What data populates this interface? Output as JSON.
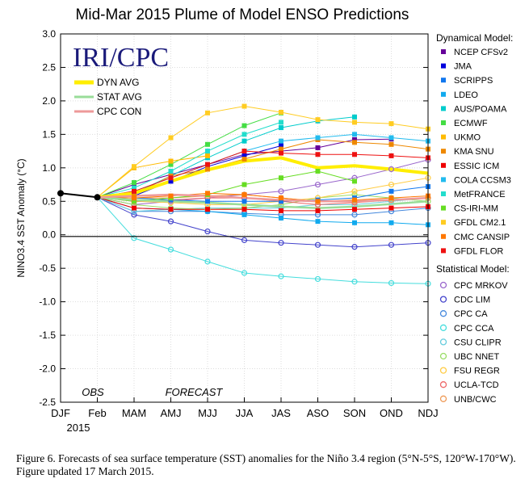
{
  "chart_data": {
    "type": "line",
    "title": "Mid-Mar 2015 Plume of Model ENSO Predictions",
    "xlabel": "",
    "ylabel": "NINO3.4 SST Anomaly (°C)",
    "ylim": [
      -2.5,
      3.0
    ],
    "yticks": [
      "3.0",
      "2.5",
      "2.0",
      "1.5",
      "1.0",
      "0.5",
      "0.0",
      "-0.5",
      "-1.0",
      "-1.5",
      "-2.0",
      "-2.5"
    ],
    "categories": [
      "DJF",
      "Feb",
      "MAM",
      "AMJ",
      "MJJ",
      "JJA",
      "JAS",
      "ASO",
      "SON",
      "OND",
      "NDJ"
    ],
    "year_label": "2015",
    "obs_label": "OBS",
    "forecast_label": "FORECAST",
    "logo_text": "IRI/CPC",
    "grid": true,
    "observed": {
      "values": [
        0.62,
        0.56
      ],
      "color": "#000000"
    },
    "averages": [
      {
        "name": "DYN AVG",
        "color": "#ffee00",
        "values": [
          null,
          0.56,
          0.62,
          0.8,
          0.97,
          1.1,
          1.15,
          1.0,
          1.03,
          0.98,
          0.92
        ]
      },
      {
        "name": "STAT AVG",
        "color": "#99dd99",
        "values": [
          null,
          0.56,
          0.52,
          0.5,
          0.48,
          0.45,
          0.42,
          0.4,
          0.42,
          0.46,
          0.5
        ]
      },
      {
        "name": "CPC CON",
        "color": "#ee9999",
        "values": [
          null,
          0.56,
          0.58,
          0.6,
          0.58,
          0.55,
          0.52,
          0.5,
          0.5,
          0.52,
          0.55
        ]
      }
    ],
    "dynamical_title": "Dynamical Model:",
    "statistical_title": "Statistical Model:",
    "dynamical": [
      {
        "name": "NCEP CFSv2",
        "color": "#660099",
        "values": [
          null,
          0.56,
          0.75,
          0.9,
          1.05,
          1.2,
          1.25,
          1.3,
          1.42,
          1.43,
          null
        ]
      },
      {
        "name": "JMA",
        "color": "#0000dd",
        "values": [
          null,
          0.56,
          0.58,
          0.8,
          1.02,
          1.18,
          1.33,
          null,
          null,
          null,
          null
        ]
      },
      {
        "name": "SCRIPPS",
        "color": "#1177ee",
        "values": [
          null,
          0.56,
          0.55,
          0.52,
          0.5,
          0.5,
          0.5,
          0.52,
          0.55,
          0.65,
          0.72
        ]
      },
      {
        "name": "LDEO",
        "color": "#11aaee",
        "values": [
          null,
          0.56,
          0.4,
          0.38,
          0.35,
          0.3,
          0.25,
          0.2,
          0.18,
          0.18,
          0.15
        ]
      },
      {
        "name": "AUS/POAMA",
        "color": "#00cccc",
        "values": [
          null,
          0.56,
          0.62,
          0.88,
          1.15,
          1.4,
          1.6,
          1.7,
          1.76,
          null,
          null
        ]
      },
      {
        "name": "ECMWF",
        "color": "#44dd44",
        "values": [
          null,
          0.56,
          0.78,
          1.05,
          1.35,
          1.63,
          1.82,
          null,
          null,
          null,
          null
        ]
      },
      {
        "name": "UKMO",
        "color": "#ffbb00",
        "values": [
          null,
          0.56,
          1.0,
          1.1,
          1.18,
          null,
          null,
          null,
          null,
          null,
          null
        ]
      },
      {
        "name": "KMA SNU",
        "color": "#ee8800",
        "values": [
          null,
          0.56,
          0.6,
          0.88,
          0.98,
          1.13,
          1.28,
          1.42,
          1.38,
          1.35,
          1.28
        ]
      },
      {
        "name": "ESSIC ICM",
        "color": "#ee0000",
        "values": [
          null,
          0.56,
          0.4,
          0.38,
          0.38,
          0.38,
          0.36,
          0.36,
          0.38,
          0.4,
          0.42
        ]
      },
      {
        "name": "COLA CCSM3",
        "color": "#22bbee",
        "values": [
          null,
          0.56,
          0.65,
          0.85,
          1.05,
          1.25,
          1.4,
          1.45,
          1.5,
          1.45,
          1.4
        ]
      },
      {
        "name": "MetFRANCE",
        "color": "#22ddcc",
        "values": [
          null,
          0.56,
          0.7,
          0.95,
          1.25,
          1.5,
          1.68,
          null,
          null,
          null,
          null
        ]
      },
      {
        "name": "CS-IRI-MM",
        "color": "#66dd22",
        "values": [
          null,
          0.56,
          0.5,
          0.55,
          0.6,
          0.75,
          0.85,
          0.95,
          0.8,
          null,
          null
        ]
      },
      {
        "name": "GFDL CM2.1",
        "color": "#ffcc22",
        "values": [
          null,
          0.56,
          1.02,
          1.45,
          1.82,
          1.92,
          1.83,
          1.72,
          1.68,
          1.66,
          1.58
        ]
      },
      {
        "name": "CMC CANSIP",
        "color": "#ff7700",
        "values": [
          null,
          0.56,
          0.55,
          0.58,
          0.62,
          0.6,
          0.55,
          0.5,
          0.52,
          0.55,
          0.58
        ]
      },
      {
        "name": "GFDL FLOR",
        "color": "#ee1111",
        "values": [
          null,
          0.56,
          0.65,
          0.85,
          1.05,
          1.25,
          1.22,
          1.2,
          1.2,
          1.18,
          1.15
        ]
      }
    ],
    "statistical": [
      {
        "name": "CPC MRKOV",
        "color": "#9966cc",
        "values": [
          null,
          0.56,
          0.45,
          0.5,
          0.55,
          0.6,
          0.65,
          0.75,
          0.85,
          0.98,
          1.12
        ]
      },
      {
        "name": "CDC LIM",
        "color": "#4444cc",
        "values": [
          null,
          0.56,
          0.3,
          0.2,
          0.05,
          -0.08,
          -0.12,
          -0.15,
          -0.18,
          -0.15,
          -0.12
        ]
      },
      {
        "name": "CPC CA",
        "color": "#4488dd",
        "values": [
          null,
          0.56,
          0.35,
          0.35,
          0.35,
          0.32,
          0.3,
          0.3,
          0.3,
          0.35,
          0.4
        ]
      },
      {
        "name": "CPC CCA",
        "color": "#44dddd",
        "values": [
          null,
          0.56,
          -0.05,
          -0.22,
          -0.4,
          -0.57,
          -0.62,
          -0.66,
          -0.7,
          -0.72,
          -0.73
        ]
      },
      {
        "name": "CSU CLIPR",
        "color": "#66ccdd",
        "values": [
          null,
          0.56,
          0.35,
          0.38,
          0.4,
          0.4,
          0.4,
          0.45,
          0.45,
          0.5,
          0.55
        ]
      },
      {
        "name": "UBC NNET",
        "color": "#99dd66",
        "values": [
          null,
          0.56,
          0.45,
          0.4,
          0.38,
          0.4,
          0.45,
          0.55,
          0.6,
          0.55,
          0.5
        ]
      },
      {
        "name": "FSU REGR",
        "color": "#ffcc44",
        "values": [
          null,
          0.56,
          0.5,
          0.48,
          0.45,
          0.45,
          0.5,
          0.55,
          0.65,
          0.75,
          0.85
        ]
      },
      {
        "name": "UCLA-TCD",
        "color": "#ee6666",
        "values": [
          null,
          0.56,
          0.5,
          0.52,
          0.55,
          0.55,
          0.5,
          0.45,
          0.48,
          0.52,
          0.55
        ]
      },
      {
        "name": "UNB/CWC",
        "color": "#ee9955",
        "values": [
          null,
          0.56,
          0.55,
          0.55,
          0.58,
          0.6,
          0.55,
          0.5,
          0.5,
          0.52,
          0.55
        ]
      }
    ]
  },
  "caption": "Figure 6. Forecasts of sea surface temperature (SST) anomalies for the Niño 3.4 region (5°N-5°S, 120°W-170°W). Figure updated 17 March 2015."
}
